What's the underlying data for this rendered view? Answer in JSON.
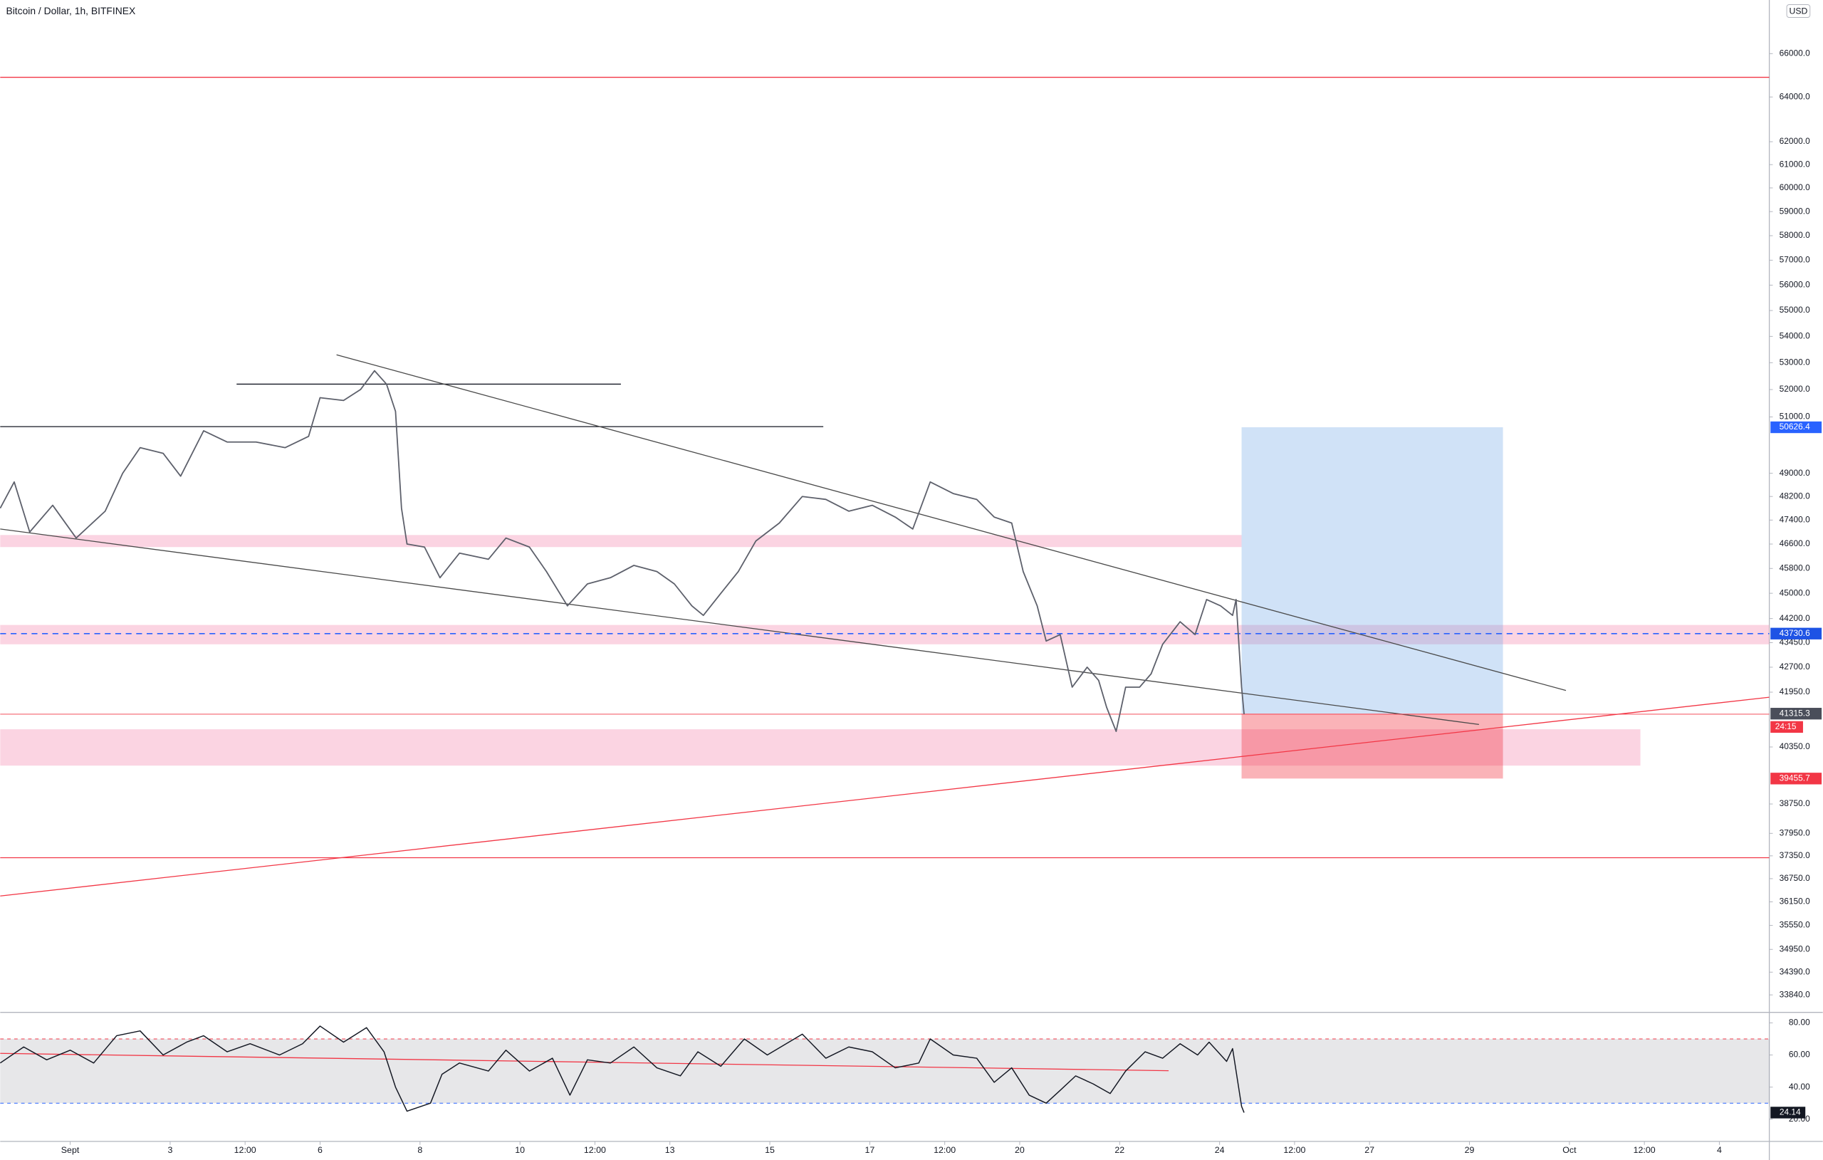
{
  "chart_data": [
    {
      "type": "line",
      "title": "Bitcoin / Dollar, 1h, BITFINEX",
      "currency": "USD",
      "log_scale": true,
      "color": "#5d606b",
      "xlim": [
        -0.4,
        35.0
      ],
      "ylim": [
        33450,
        68560
      ],
      "yticks": [
        {
          "value": 66000,
          "label": "66000.0"
        },
        {
          "value": 64000,
          "label": "64000.0"
        },
        {
          "value": 62000,
          "label": "62000.0"
        },
        {
          "value": 61000,
          "label": "61000.0"
        },
        {
          "value": 60000,
          "label": "60000.0"
        },
        {
          "value": 59000,
          "label": "59000.0"
        },
        {
          "value": 58000,
          "label": "58000.0"
        },
        {
          "value": 57000,
          "label": "57000.0"
        },
        {
          "value": 56000,
          "label": "56000.0"
        },
        {
          "value": 55000,
          "label": "55000.0"
        },
        {
          "value": 54000,
          "label": "54000.0"
        },
        {
          "value": 53000,
          "label": "53000.0"
        },
        {
          "value": 52000,
          "label": "52000.0"
        },
        {
          "value": 51000,
          "label": "51000.0"
        },
        {
          "value": 49000,
          "label": "49000.0"
        },
        {
          "value": 48200,
          "label": "48200.0"
        },
        {
          "value": 47400,
          "label": "47400.0"
        },
        {
          "value": 46600,
          "label": "46600.0"
        },
        {
          "value": 45800,
          "label": "45800.0"
        },
        {
          "value": 45000,
          "label": "45000.0"
        },
        {
          "value": 44200,
          "label": "44200.0"
        },
        {
          "value": 43450,
          "label": "43450.0"
        },
        {
          "value": 42700,
          "label": "42700.0"
        },
        {
          "value": 41950,
          "label": "41950.0"
        },
        {
          "value": 40350,
          "label": "40350.0"
        },
        {
          "value": 38750,
          "label": "38750.0"
        },
        {
          "value": 37950,
          "label": "37950.0"
        },
        {
          "value": 37350,
          "label": "37350.0"
        },
        {
          "value": 36750,
          "label": "36750.0"
        },
        {
          "value": 36150,
          "label": "36150.0"
        },
        {
          "value": 35550,
          "label": "35550.0"
        },
        {
          "value": 34950,
          "label": "34950.0"
        },
        {
          "value": 34390,
          "label": "34390.0"
        },
        {
          "value": 33840,
          "label": "33840.0"
        }
      ],
      "x": [
        -0.4,
        -0.12,
        0.19,
        0.65,
        1.12,
        1.7,
        2.05,
        2.4,
        2.86,
        3.21,
        3.67,
        4.14,
        4.72,
        5.3,
        5.77,
        6.0,
        6.47,
        6.81,
        7.09,
        7.33,
        7.51,
        7.63,
        7.74,
        8.09,
        8.4,
        8.79,
        9.37,
        9.72,
        10.19,
        10.53,
        10.95,
        11.35,
        11.81,
        12.28,
        12.74,
        13.09,
        13.44,
        13.67,
        14.02,
        14.37,
        14.72,
        15.19,
        15.65,
        16.12,
        16.58,
        17.05,
        17.51,
        17.86,
        18.21,
        18.67,
        19.14,
        19.49,
        19.84,
        20.07,
        20.35,
        20.53,
        20.81,
        21.05,
        21.35,
        21.58,
        21.74,
        21.93,
        22.12,
        22.4,
        22.63,
        22.86,
        23.21,
        23.51,
        23.74,
        24.02,
        24.26,
        24.33,
        24.44,
        24.49
      ],
      "values": [
        47800,
        48700,
        47000,
        47900,
        46800,
        47700,
        49000,
        49900,
        49700,
        48900,
        50500,
        50100,
        50100,
        49900,
        50300,
        51700,
        51600,
        52000,
        52700,
        52200,
        51200,
        47800,
        46600,
        46500,
        45500,
        46300,
        46100,
        46800,
        46500,
        45700,
        44600,
        45300,
        45500,
        45900,
        45700,
        45300,
        44600,
        44300,
        45000,
        45700,
        46700,
        47300,
        48200,
        48100,
        47700,
        47900,
        47500,
        47100,
        48700,
        48300,
        48100,
        47500,
        47300,
        45700,
        44600,
        43500,
        43700,
        42100,
        42700,
        42300,
        41500,
        40800,
        42100,
        42100,
        42500,
        43400,
        44100,
        43700,
        44800,
        44600,
        44300,
        44800,
        42100,
        41300
      ],
      "zones": [
        {
          "x": [
            -0.4,
            24.44
          ],
          "y": [
            46500,
            46900
          ]
        },
        {
          "x": [
            -0.4,
            35.0
          ],
          "y": [
            43400,
            44000
          ]
        },
        {
          "x": [
            -0.4,
            32.42
          ],
          "y": [
            39820,
            40860
          ]
        }
      ],
      "lines": [
        {
          "x": [
            -0.4,
            35.0
          ],
          "y": [
            64900,
            64900
          ],
          "color": "#f23645"
        },
        {
          "x": [
            -0.4,
            35.0
          ],
          "y": [
            37300,
            37300
          ],
          "color": "#f23645"
        },
        {
          "x": [
            -0.4,
            16.07
          ],
          "y": [
            50650,
            50650
          ],
          "color": "#131722"
        },
        {
          "x": [
            4.33,
            12.02
          ],
          "y": [
            52200,
            52200
          ],
          "color": "#131722"
        },
        {
          "x": [
            6.33,
            30.93
          ],
          "y": [
            53300,
            42000
          ],
          "color": "#4a4a4a"
        },
        {
          "x": [
            -0.4,
            29.19
          ],
          "y": [
            47100,
            41000
          ],
          "color": "#4a4a4a"
        },
        {
          "x": [
            -0.4,
            35.0
          ],
          "y": [
            36300,
            41800
          ],
          "color": "#f23645"
        }
      ],
      "dashed_level": {
        "value": 43730.6,
        "color": "#2962ff"
      },
      "position": {
        "x": [
          24.44,
          29.67
        ],
        "entry": 41315.3,
        "target": 50626.4,
        "stop": 39455.7
      },
      "countdown": "24:15"
    },
    {
      "type": "line",
      "color": "#131722",
      "xlim": [
        -0.4,
        35.0
      ],
      "ylim": [
        6.2,
        85.8
      ],
      "yticks": [
        {
          "value": 20,
          "label": "20.00"
        },
        {
          "value": 40,
          "label": "40.00"
        },
        {
          "value": 60,
          "label": "60.00"
        },
        {
          "value": 80,
          "label": "80.00"
        }
      ],
      "band": [
        30,
        70
      ],
      "x": [
        -0.4,
        0.07,
        0.53,
        1.0,
        1.47,
        1.93,
        2.4,
        2.86,
        3.33,
        3.67,
        4.14,
        4.6,
        5.19,
        5.65,
        6.0,
        6.47,
        6.93,
        7.28,
        7.51,
        7.74,
        8.21,
        8.44,
        8.79,
        9.37,
        9.72,
        10.19,
        10.65,
        11.0,
        11.35,
        11.81,
        12.28,
        12.74,
        13.21,
        13.56,
        14.02,
        14.49,
        14.95,
        15.65,
        16.12,
        16.58,
        17.05,
        17.51,
        17.98,
        18.21,
        18.67,
        19.14,
        19.49,
        19.84,
        20.19,
        20.53,
        20.81,
        21.12,
        21.47,
        21.81,
        22.12,
        22.51,
        22.86,
        23.21,
        23.56,
        23.79,
        24.14,
        24.26,
        24.44,
        24.49
      ],
      "values": [
        55,
        65,
        57,
        63,
        55,
        72,
        75,
        60,
        68,
        72,
        62,
        67,
        60,
        67,
        78,
        68,
        77,
        62,
        40,
        25,
        30,
        48,
        55,
        50,
        63,
        50,
        58,
        35,
        57,
        55,
        65,
        52,
        47,
        62,
        53,
        70,
        60,
        73,
        58,
        65,
        62,
        52,
        55,
        70,
        60,
        58,
        43,
        52,
        35,
        30,
        38,
        47,
        42,
        36,
        50,
        62,
        58,
        67,
        60,
        68,
        56,
        64,
        28,
        24.14
      ],
      "trend": {
        "x": [
          -0.4,
          22.98
        ],
        "y": [
          61.0,
          50.2
        ],
        "color": "#f23645"
      },
      "xticks": [
        {
          "value": 1,
          "label": "Sept"
        },
        3,
        {
          "value": 4.5,
          "label": "12:00"
        },
        6,
        8,
        10,
        {
          "value": 11.5,
          "label": "12:00"
        },
        13,
        15,
        17,
        {
          "value": 18.5,
          "label": "12:00"
        },
        20,
        22,
        24,
        {
          "value": 25.5,
          "label": "12:00"
        },
        27,
        29,
        {
          "value": 31,
          "label": "Oct"
        },
        {
          "value": 32.5,
          "label": "12:00"
        },
        {
          "value": 34,
          "label": "4"
        }
      ]
    }
  ]
}
